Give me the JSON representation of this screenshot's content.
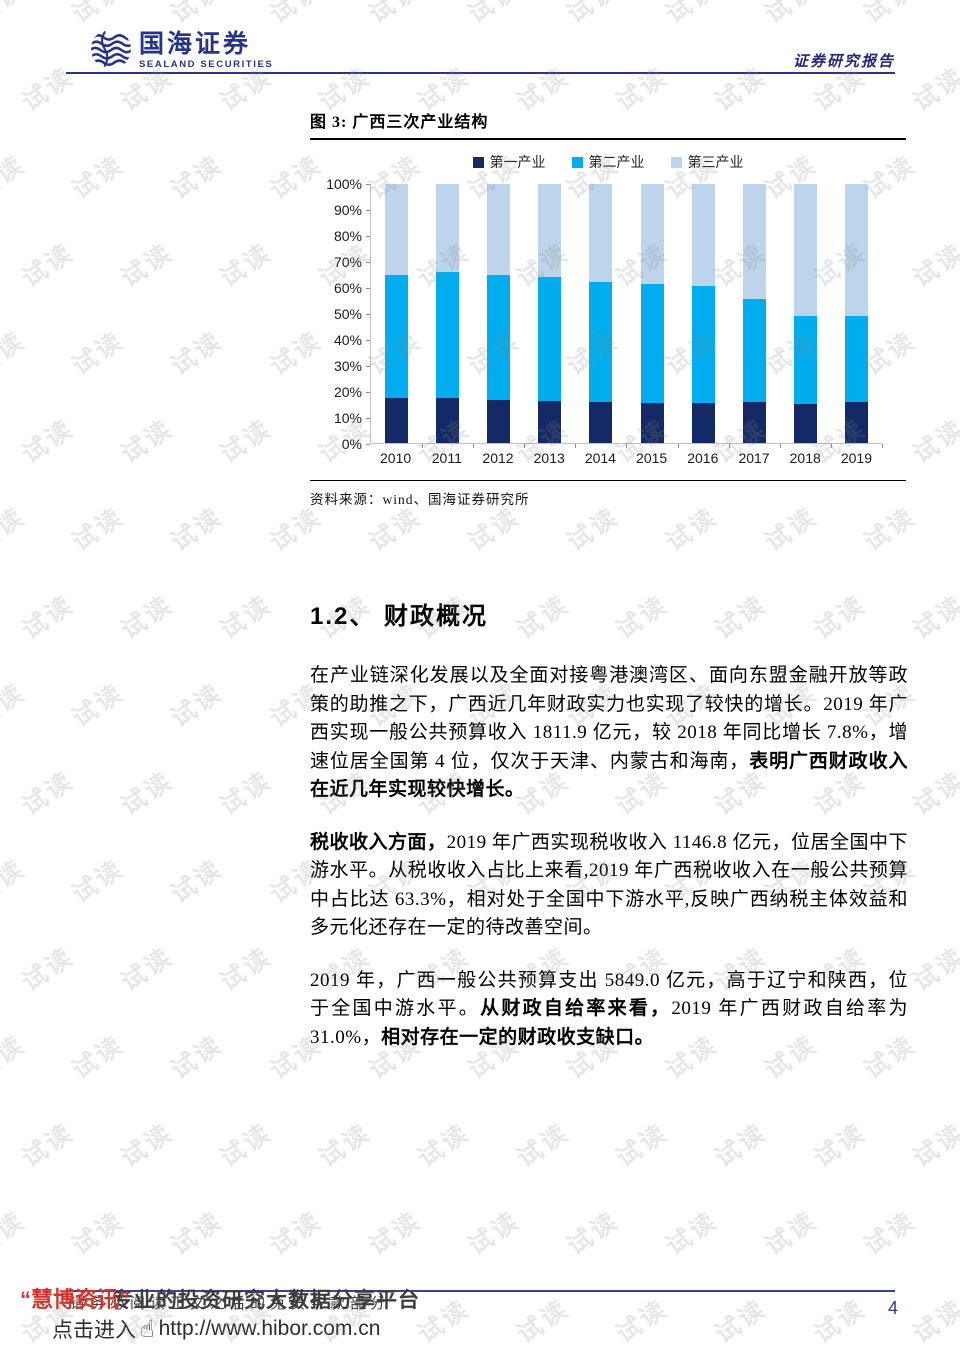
{
  "header": {
    "logo_cn": "国海证券",
    "logo_en": "SEALAND SECURITIES",
    "report_type": "证券研究报告"
  },
  "figure": {
    "title": "图 3: 广西三次产业结构",
    "source": "资料来源：wind、国海证券研究所"
  },
  "chart_data": {
    "type": "bar",
    "stacked": true,
    "title": "广西三次产业结构",
    "categories": [
      "2010",
      "2011",
      "2012",
      "2013",
      "2014",
      "2015",
      "2016",
      "2017",
      "2018",
      "2019"
    ],
    "series": [
      {
        "name": "第一产业",
        "color": "#142a66",
        "values": [
          17.5,
          17.5,
          16.7,
          16.4,
          15.7,
          15.3,
          15.3,
          15.8,
          15.2,
          16.0
        ]
      },
      {
        "name": "第二产业",
        "color": "#00aeef",
        "values": [
          47.2,
          48.6,
          48.1,
          47.7,
          46.5,
          46.0,
          45.2,
          39.9,
          33.8,
          33.1
        ]
      },
      {
        "name": "第三产业",
        "color": "#bcd5ec",
        "values": [
          35.3,
          33.9,
          35.2,
          35.9,
          37.8,
          38.7,
          39.5,
          44.3,
          51.0,
          50.9
        ]
      }
    ],
    "ylim": [
      0,
      100
    ],
    "y_ticks": [
      "100%",
      "90%",
      "80%",
      "70%",
      "60%",
      "50%",
      "40%",
      "30%",
      "20%",
      "10%",
      "0%"
    ],
    "legend_position": "top",
    "grid": false
  },
  "section": {
    "heading": "1.2、  财政概况",
    "paragraphs": [
      {
        "segments": [
          {
            "text": "在产业链深化发展以及全面对接粤港澳湾区、面向东盟金融开放等政策的助推之下，广西近几年财政实力也实现了较快的增长。2019 年广西实现一般公共预算收入 1811.9 亿元，较 2018 年同比增长 7.8%，增速位居全国第 4 位，仅次于天津、内蒙古和海南，",
            "bold": false
          },
          {
            "text": "表明广西财政收入在近几年实现较快增长。",
            "bold": true
          }
        ]
      },
      {
        "segments": [
          {
            "text": "税收收入方面，",
            "bold": true
          },
          {
            "text": "2019 年广西实现税收收入 1146.8 亿元，位居全国中下游水平。从税收收入占比上来看,2019 年广西税收收入在一般公共预算中占比达 63.3%，相对处于全国中下游水平,反映广西纳税主体效益和多元化还存在一定的待改善空间。",
            "bold": false
          }
        ]
      },
      {
        "segments": [
          {
            "text": "2019 年，广西一般公共预算支出 5849.0 亿元，高于辽宁和陕西，位于全国中游水平。",
            "bold": false
          },
          {
            "text": "从财政自给率来看，",
            "bold": true
          },
          {
            "text": "2019 年广西财政自给率为 31.0%，",
            "bold": false
          },
          {
            "text": "相对存在一定的财政收支缺口。",
            "bold": true
          }
        ]
      }
    ]
  },
  "footer": {
    "brand": "“慧博资讯”",
    "slogan": "专业的投资研究大数据分享平台",
    "disclaimer": "请务必阅读正文之后的免责条款部分",
    "cta": "点击进入",
    "url": "http://www.hibor.com.cn",
    "page_number": "4"
  },
  "watermark": {
    "text": "试读"
  },
  "icons": {
    "hand_pointer": "☝"
  }
}
